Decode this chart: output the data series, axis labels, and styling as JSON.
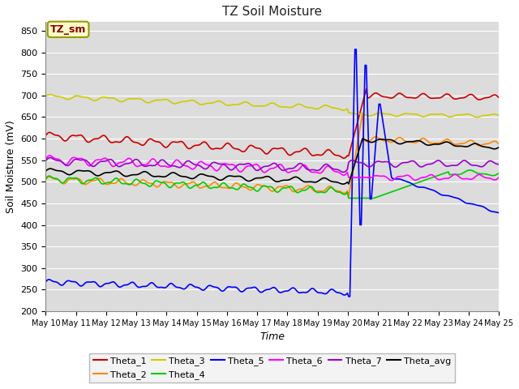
{
  "title": "TZ Soil Moisture",
  "xlabel": "Time",
  "ylabel": "Soil Moisture (mV)",
  "ylim": [
    200,
    870
  ],
  "yticks": [
    200,
    250,
    300,
    350,
    400,
    450,
    500,
    550,
    600,
    650,
    700,
    750,
    800,
    850
  ],
  "background_color": "#ffffff",
  "plot_bg_color": "#dcdcdc",
  "grid_color": "#ffffff",
  "series_colors": {
    "Theta_1": "#cc0000",
    "Theta_2": "#ff8800",
    "Theta_3": "#cccc00",
    "Theta_4": "#00cc00",
    "Theta_5": "#0000ff",
    "Theta_6": "#ff00ff",
    "Theta_7": "#9900cc",
    "Theta_avg": "#000000"
  },
  "legend_box_color": "#ffffcc",
  "legend_box_border": "#999900",
  "legend_title": "TZ_sm",
  "legend_title_color": "#880000"
}
